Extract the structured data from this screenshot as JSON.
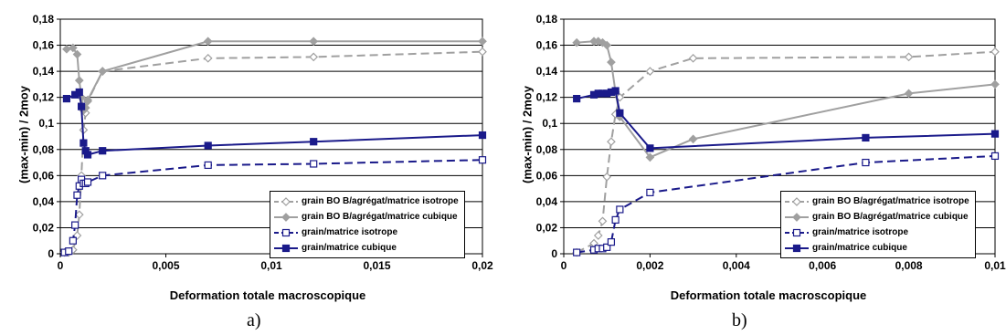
{
  "chart_data": [
    {
      "type": "line",
      "caption": "a)",
      "xlabel": "Deformation totale macroscopique",
      "ylabel": "(max-min) / 2moy",
      "xlim": [
        0,
        0.02
      ],
      "ylim": [
        0,
        0.18
      ],
      "xticks": [
        "0",
        "0,005",
        "0,01",
        "0,015",
        "0,02"
      ],
      "yticks": [
        "0",
        "0,02",
        "0,04",
        "0,06",
        "0,08",
        "0,1",
        "0,12",
        "0,14",
        "0,16",
        "0,18"
      ],
      "grid": "horizontal",
      "legend_position": "bottom-right",
      "series": [
        {
          "name": "grain BO B/agrégat/matrice isotrope",
          "color": "#a0a0a0",
          "dash": true,
          "marker": "diamond-open",
          "x": [
            0.0002,
            0.0004,
            0.0006,
            0.0008,
            0.0009,
            0.001,
            0.0011,
            0.0012,
            0.0013,
            0.002,
            0.007,
            0.012,
            0.02
          ],
          "y": [
            0.001,
            0.001,
            0.003,
            0.014,
            0.03,
            0.06,
            0.095,
            0.108,
            0.117,
            0.14,
            0.15,
            0.151,
            0.155
          ]
        },
        {
          "name": "grain BO B/agrégat/matrice cubique",
          "color": "#a0a0a0",
          "dash": false,
          "marker": "diamond",
          "x": [
            0.0003,
            0.0006,
            0.0008,
            0.0009,
            0.001,
            0.0011,
            0.0012,
            0.0013,
            0.002,
            0.007,
            0.012,
            0.02
          ],
          "y": [
            0.157,
            0.158,
            0.153,
            0.133,
            0.12,
            0.11,
            0.112,
            0.118,
            0.14,
            0.163,
            0.163,
            0.163
          ]
        },
        {
          "name": "grain/matrice isotrope",
          "color": "#1a1a8a",
          "dash": true,
          "marker": "square-open",
          "x": [
            0.0002,
            0.0004,
            0.0006,
            0.0007,
            0.0008,
            0.0009,
            0.001,
            0.0011,
            0.0012,
            0.0013,
            0.002,
            0.007,
            0.012,
            0.02
          ],
          "y": [
            0.001,
            0.002,
            0.01,
            0.022,
            0.045,
            0.052,
            0.057,
            0.054,
            0.054,
            0.055,
            0.06,
            0.068,
            0.069,
            0.072
          ]
        },
        {
          "name": "grain/matrice cubique",
          "color": "#1a1a8a",
          "dash": false,
          "marker": "square",
          "x": [
            0.0003,
            0.0007,
            0.0009,
            0.001,
            0.0011,
            0.0012,
            0.0013,
            0.002,
            0.007,
            0.012,
            0.02
          ],
          "y": [
            0.119,
            0.122,
            0.124,
            0.113,
            0.085,
            0.079,
            0.076,
            0.079,
            0.083,
            0.086,
            0.091
          ]
        }
      ]
    },
    {
      "type": "line",
      "caption": "b)",
      "xlabel": "Deformation totale macroscopique",
      "ylabel": "(max-min) / 2moy",
      "xlim": [
        0,
        0.01
      ],
      "ylim": [
        0,
        0.18
      ],
      "xticks": [
        "0",
        "0,002",
        "0,004",
        "0,006",
        "0,008",
        "0,01"
      ],
      "yticks": [
        "0",
        "0,02",
        "0,04",
        "0,06",
        "0,08",
        "0,1",
        "0,12",
        "0,14",
        "0,16",
        "0,18"
      ],
      "grid": "horizontal",
      "legend_position": "bottom-right",
      "series": [
        {
          "name": "grain BO B/agrégat/matrice isotrope",
          "color": "#a0a0a0",
          "dash": true,
          "marker": "diamond-open",
          "x": [
            0.0003,
            0.0007,
            0.0008,
            0.0009,
            0.001,
            0.0011,
            0.0012,
            0.0013,
            0.002,
            0.003,
            0.008,
            0.01
          ],
          "y": [
            0.001,
            0.008,
            0.014,
            0.025,
            0.059,
            0.086,
            0.107,
            0.12,
            0.14,
            0.15,
            0.151,
            0.155
          ]
        },
        {
          "name": "grain BO B/agrégat/matrice cubique",
          "color": "#a0a0a0",
          "dash": false,
          "marker": "diamond",
          "x": [
            0.0003,
            0.0007,
            0.0008,
            0.0009,
            0.001,
            0.0011,
            0.0012,
            0.0013,
            0.002,
            0.003,
            0.008,
            0.01
          ],
          "y": [
            0.162,
            0.163,
            0.163,
            0.162,
            0.16,
            0.147,
            0.124,
            0.105,
            0.074,
            0.088,
            0.123,
            0.13
          ]
        },
        {
          "name": "grain/matrice isotrope",
          "color": "#1a1a8a",
          "dash": true,
          "marker": "square-open",
          "x": [
            0.0003,
            0.0007,
            0.0008,
            0.0009,
            0.001,
            0.0011,
            0.0012,
            0.0013,
            0.002,
            0.007,
            0.01
          ],
          "y": [
            0.001,
            0.003,
            0.004,
            0.004,
            0.005,
            0.009,
            0.026,
            0.034,
            0.047,
            0.07,
            0.075
          ]
        },
        {
          "name": "grain/matrice cubique",
          "color": "#1a1a8a",
          "dash": false,
          "marker": "square",
          "x": [
            0.0003,
            0.0007,
            0.0008,
            0.0009,
            0.001,
            0.0011,
            0.0012,
            0.0013,
            0.002,
            0.007,
            0.01
          ],
          "y": [
            0.119,
            0.122,
            0.123,
            0.123,
            0.123,
            0.124,
            0.125,
            0.108,
            0.081,
            0.089,
            0.092
          ]
        }
      ]
    }
  ]
}
